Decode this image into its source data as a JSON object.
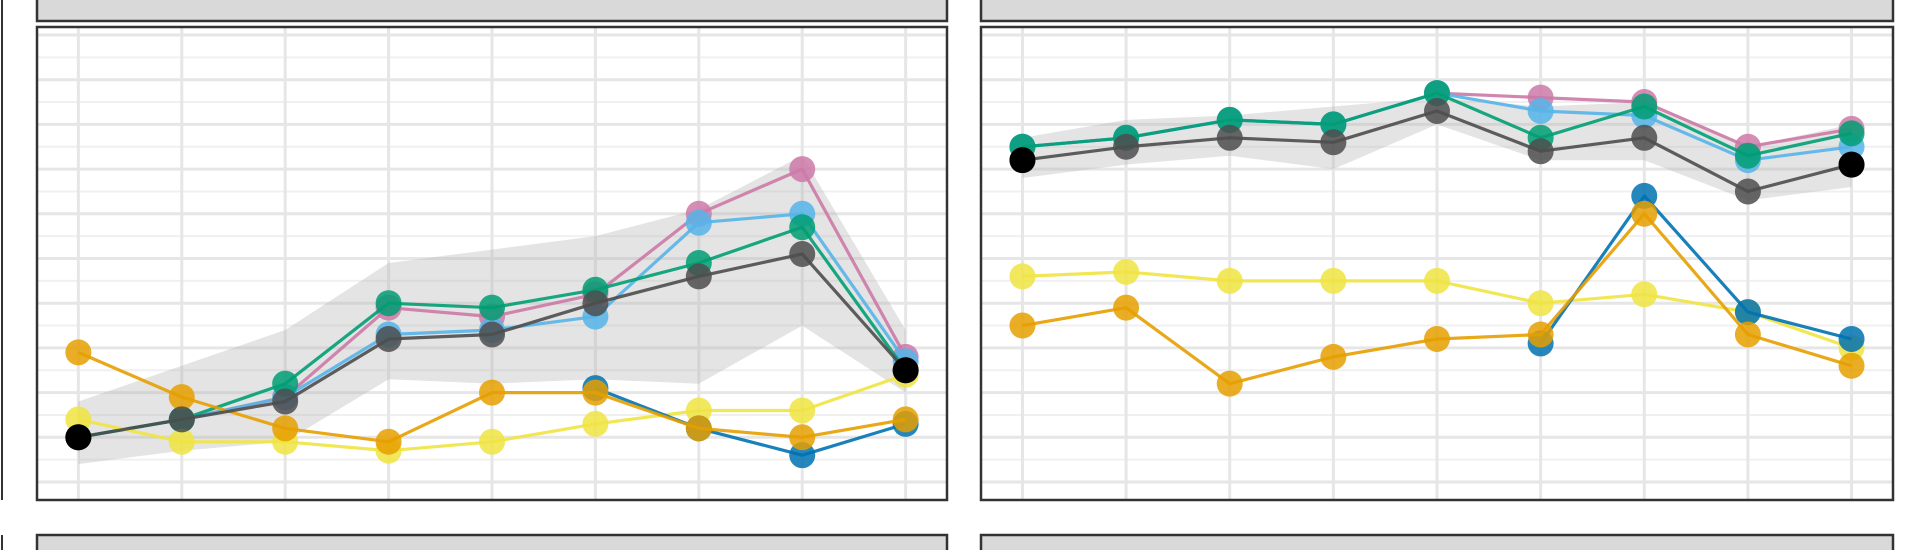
{
  "chart_data": [
    {
      "type": "line",
      "title": "",
      "xlabel": "",
      "ylabel": "",
      "x": [
        1,
        2,
        3,
        4,
        5,
        6,
        7,
        8,
        9
      ],
      "xlim": [
        0.6,
        9.4
      ],
      "ylim": [
        0.0,
        1.0
      ],
      "grid": true,
      "colors": {
        "panel_border": "#333333",
        "strip_fill": "#d9d9d9",
        "grid_major": "#e6e6e6",
        "grid_minor": "#f0f0f0",
        "ribbon": "#b3b3b3"
      },
      "ribbon": {
        "lower": [
          0.04,
          0.07,
          0.09,
          0.23,
          0.22,
          0.23,
          0.22,
          0.35,
          0.2
        ],
        "upper": [
          0.18,
          0.26,
          0.34,
          0.49,
          0.52,
          0.55,
          0.61,
          0.73,
          0.34
        ]
      },
      "series": [
        {
          "color": "#CC79A7",
          "values": [
            0.1,
            0.14,
            0.19,
            0.39,
            0.37,
            0.42,
            0.6,
            0.7,
            0.28
          ]
        },
        {
          "color": "#56B4E9",
          "values": [
            0.1,
            0.14,
            0.19,
            0.33,
            0.34,
            0.37,
            0.58,
            0.6,
            0.27
          ]
        },
        {
          "color": "#009E73",
          "values": [
            0.1,
            0.14,
            0.22,
            0.4,
            0.39,
            0.43,
            0.49,
            0.57,
            0.25
          ]
        },
        {
          "color": "#F0E442",
          "values": [
            0.14,
            0.09,
            0.09,
            0.07,
            0.09,
            0.13,
            0.16,
            0.16,
            0.24
          ]
        },
        {
          "color": "#0072B2",
          "values": [
            null,
            null,
            null,
            null,
            null,
            0.21,
            0.12,
            0.06,
            0.13
          ]
        },
        {
          "color": "#E69F00",
          "values": [
            0.29,
            0.19,
            0.12,
            0.09,
            0.2,
            0.2,
            0.12,
            0.1,
            0.14
          ]
        },
        {
          "color": "#4D4D4D",
          "values": [
            0.1,
            0.14,
            0.18,
            0.32,
            0.33,
            0.4,
            0.46,
            0.51,
            0.25
          ]
        }
      ]
    },
    {
      "type": "line",
      "title": "",
      "xlabel": "",
      "ylabel": "",
      "x": [
        1,
        2,
        3,
        4,
        5,
        6,
        7,
        8,
        9
      ],
      "xlim": [
        0.6,
        9.4
      ],
      "ylim": [
        0.0,
        1.0
      ],
      "grid": true,
      "colors": {
        "panel_border": "#333333",
        "strip_fill": "#d9d9d9",
        "grid_major": "#e6e6e6",
        "grid_minor": "#f0f0f0",
        "ribbon": "#b3b3b3"
      },
      "ribbon": {
        "lower": [
          0.68,
          0.71,
          0.73,
          0.7,
          0.8,
          0.72,
          0.72,
          0.63,
          0.66
        ],
        "upper": [
          0.77,
          0.81,
          0.82,
          0.84,
          0.86,
          0.84,
          0.85,
          0.75,
          0.8
        ]
      },
      "series": [
        {
          "color": "#CC79A7",
          "values": [
            0.75,
            0.77,
            0.81,
            0.8,
            0.87,
            0.86,
            0.85,
            0.75,
            0.79
          ]
        },
        {
          "color": "#56B4E9",
          "values": [
            0.75,
            0.77,
            0.81,
            0.8,
            0.87,
            0.83,
            0.82,
            0.72,
            0.75
          ]
        },
        {
          "color": "#009E73",
          "values": [
            0.75,
            0.77,
            0.81,
            0.8,
            0.87,
            0.77,
            0.84,
            0.73,
            0.78
          ]
        },
        {
          "color": "#F0E442",
          "values": [
            0.46,
            0.47,
            0.45,
            0.45,
            0.45,
            0.4,
            0.42,
            0.38,
            0.3
          ]
        },
        {
          "color": "#0072B2",
          "values": [
            null,
            null,
            null,
            null,
            null,
            0.31,
            0.64,
            0.38,
            0.32
          ]
        },
        {
          "color": "#E69F00",
          "values": [
            0.35,
            0.39,
            0.22,
            0.28,
            0.32,
            0.33,
            0.6,
            0.33,
            0.26
          ]
        },
        {
          "color": "#4D4D4D",
          "values": [
            0.72,
            0.75,
            0.77,
            0.76,
            0.83,
            0.74,
            0.77,
            0.65,
            0.71
          ]
        }
      ]
    }
  ]
}
